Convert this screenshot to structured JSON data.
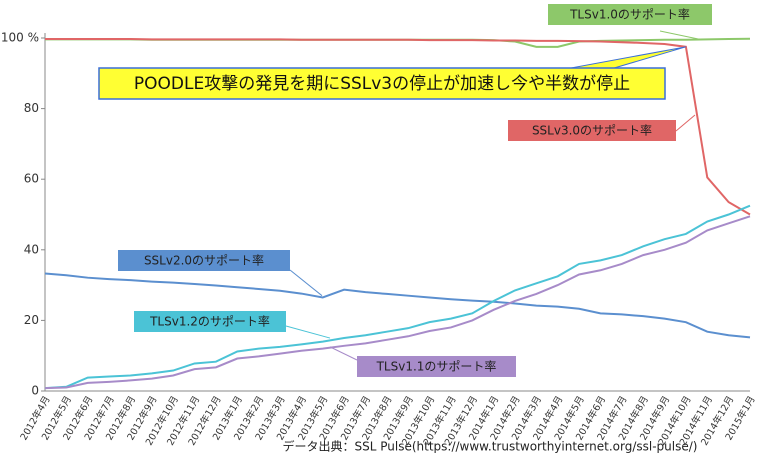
{
  "chart_data": {
    "type": "line",
    "annotation": "POODLE攻撃の発見を期にSSLv3の停止が加速し今や半数が停止",
    "source": "データ出典：SSL Pulse(https://www.trustworthyinternet.org/ssl-pulse/)",
    "categories": [
      "2012年4月",
      "2012年5月",
      "2012年6月",
      "2012年7月",
      "2012年8月",
      "2012年9月",
      "2012年10月",
      "2012年11月",
      "2012年12月",
      "2013年1月",
      "2013年2月",
      "2013年3月",
      "2013年4月",
      "2013年5月",
      "2013年6月",
      "2013年7月",
      "2013年8月",
      "2013年9月",
      "2013年10月",
      "2013年11月",
      "2013年12月",
      "2014年1月",
      "2014年2月",
      "2014年3月",
      "2014年4月",
      "2014年5月",
      "2014年6月",
      "2014年7月",
      "2014年8月",
      "2014年9月",
      "2014年10月",
      "2014年11月",
      "2014年12月",
      "2015年1月"
    ],
    "ylim": [
      0,
      100
    ],
    "yticks": [
      0,
      20,
      40,
      60,
      80,
      {
        "value": 100,
        "label": "100 %"
      }
    ],
    "series": [
      {
        "name": "TLSv1.0のサポート率",
        "color": "#8dc86a",
        "values": [
          99.6,
          99.6,
          99.6,
          99.6,
          99.6,
          99.5,
          99.5,
          99.5,
          99.5,
          99.5,
          99.5,
          99.5,
          99.5,
          99.5,
          99.5,
          99.5,
          99.5,
          99.5,
          99.5,
          99.5,
          99.5,
          99.4,
          99,
          97.5,
          97.5,
          99,
          99.2,
          99.3,
          99.4,
          99.5,
          99.5,
          99.6,
          99.7,
          99.8
        ]
      },
      {
        "name": "SSLv3.0のサポート率",
        "color": "#e06666",
        "values": [
          99.7,
          99.7,
          99.7,
          99.7,
          99.7,
          99.6,
          99.6,
          99.6,
          99.6,
          99.6,
          99.6,
          99.6,
          99.5,
          99.5,
          99.5,
          99.5,
          99.5,
          99.5,
          99.4,
          99.4,
          99.4,
          99.3,
          99.3,
          99.2,
          99.2,
          99.1,
          99,
          98.8,
          98.6,
          98.3,
          97.5,
          60.5,
          53.5,
          50
        ]
      },
      {
        "name": "SSLv2.0のサポート率",
        "color": "#5b8fcf",
        "values": [
          33.3,
          32.8,
          32.1,
          31.7,
          31.4,
          31,
          30.7,
          30.3,
          29.9,
          29.4,
          28.9,
          28.4,
          27.6,
          26.5,
          28.7,
          28,
          27.5,
          27,
          26.5,
          26,
          25.6,
          25.3,
          24.8,
          24.2,
          23.9,
          23.3,
          22,
          21.7,
          21.2,
          20.5,
          19.5,
          16.8,
          15.8,
          15.2
        ]
      },
      {
        "name": "TLSv1.2のサポート率",
        "color": "#4bc3d6",
        "values": [
          0.8,
          1.2,
          3.8,
          4.1,
          4.4,
          5,
          5.8,
          7.8,
          8.3,
          11.2,
          12,
          12.5,
          13.2,
          14,
          15,
          15.8,
          16.8,
          17.8,
          19.5,
          20.5,
          22,
          25.5,
          28.5,
          30.5,
          32.5,
          36,
          37,
          38.5,
          41,
          43,
          44.5,
          48,
          50,
          52.5
        ]
      },
      {
        "name": "TLSv1.1のサポート率",
        "color": "#a78bc9",
        "values": [
          0.8,
          1,
          2.3,
          2.6,
          3,
          3.5,
          4.4,
          6.2,
          6.7,
          9.2,
          9.8,
          10.6,
          11.4,
          12,
          12.8,
          13.5,
          14.5,
          15.5,
          17,
          18,
          20,
          23,
          25.5,
          27.5,
          30,
          33,
          34.2,
          36,
          38.5,
          40,
          42,
          45.5,
          47.5,
          49.5
        ]
      }
    ]
  }
}
